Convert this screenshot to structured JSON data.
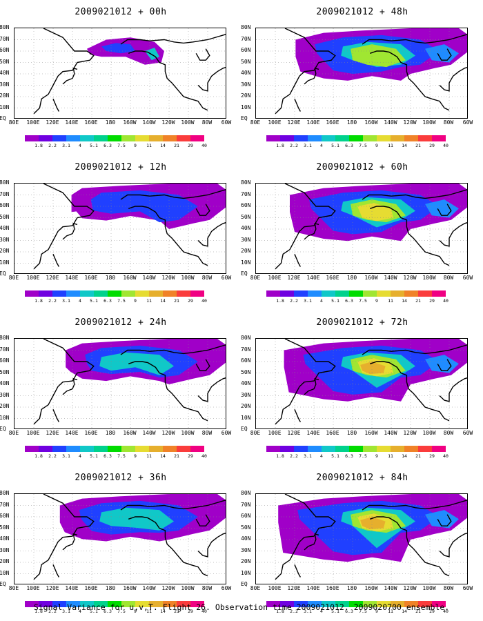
{
  "footer": "Signal Variance for u,v,T. Flight 26. Observation time 2009021012. 2009020700 ensemble.",
  "lat_labels": [
    "80N",
    "70N",
    "60N",
    "50N",
    "40N",
    "30N",
    "20N",
    "10N",
    "EQ"
  ],
  "lon_labels": [
    "80E",
    "100E",
    "120E",
    "140E",
    "160E",
    "180",
    "160W",
    "140W",
    "120W",
    "100W",
    "80W",
    "60W"
  ],
  "colorbar": {
    "colors": [
      "#a000c8",
      "#7000e0",
      "#2040ff",
      "#1f8cff",
      "#10c8c8",
      "#00d28c",
      "#00dc00",
      "#a0e632",
      "#e6dc32",
      "#e6af2d",
      "#f08228",
      "#fa3c3c",
      "#f00082"
    ],
    "labels": [
      "1.8",
      "2.2",
      "3.1",
      "4",
      "5.1",
      "6.3",
      "7.5",
      "9",
      "11",
      "14",
      "21",
      "29",
      "40"
    ]
  },
  "panels": [
    {
      "title": "2009021012 + 00h",
      "level": 0
    },
    {
      "title": "2009021012 + 12h",
      "level": 1
    },
    {
      "title": "2009021012 + 24h",
      "level": 2
    },
    {
      "title": "2009021012 + 36h",
      "level": 3
    },
    {
      "title": "2009021012 + 48h",
      "level": 4
    },
    {
      "title": "2009021012 + 60h",
      "level": 5
    },
    {
      "title": "2009021012 + 72h",
      "level": 6
    },
    {
      "title": "2009021012 + 84h",
      "level": 7
    }
  ]
}
